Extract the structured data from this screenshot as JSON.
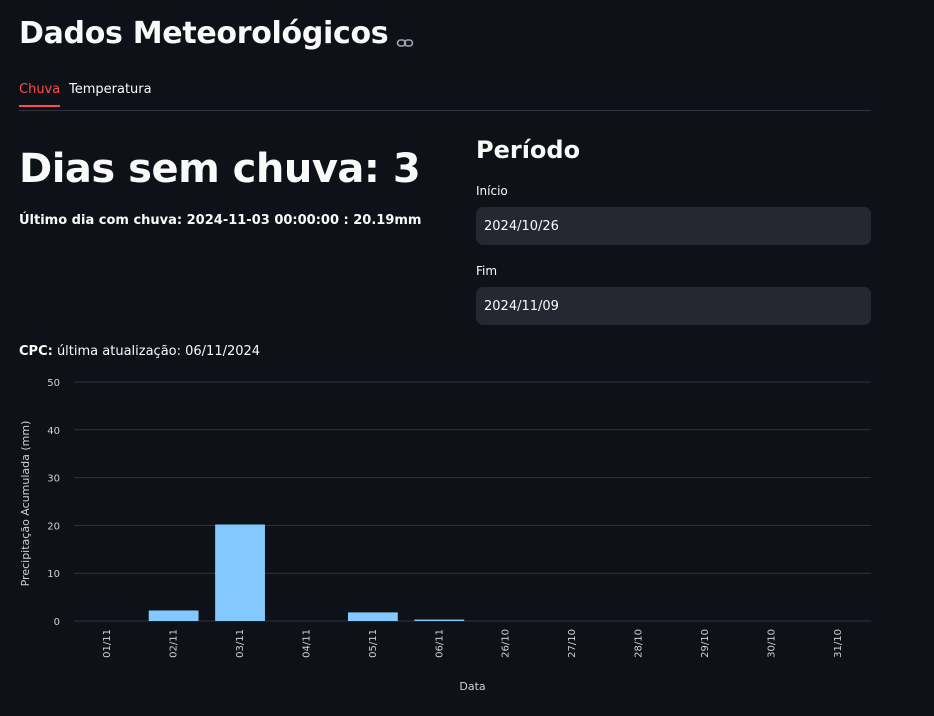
{
  "header": {
    "title": "Dados Meteorológicos",
    "link_icon": "link-icon"
  },
  "tabs": [
    {
      "label": "Chuva",
      "active": true
    },
    {
      "label": "Temperatura",
      "active": false
    }
  ],
  "rain": {
    "days_without_rain": "Dias sem chuva: 3",
    "last_rain": "Último dia com chuva: 2024-11-03 00:00:00 : 20.19mm"
  },
  "period": {
    "title": "Período",
    "start_label": "Início",
    "start_value": "2024/10/26",
    "end_label": "Fim",
    "end_value": "2024/11/09"
  },
  "cpc": {
    "prefix": "CPC:",
    "text": " última atualização: 06/11/2024"
  },
  "colors": {
    "accent": "#ff4b4b",
    "bar": "#83c9ff",
    "grid": "#31333f",
    "background": "#0e1117",
    "input_bg": "#262730"
  },
  "chart_data": {
    "type": "bar",
    "categories": [
      "01/11",
      "02/11",
      "03/11",
      "04/11",
      "05/11",
      "06/11",
      "26/10",
      "27/10",
      "28/10",
      "29/10",
      "30/10",
      "31/10"
    ],
    "values": [
      0,
      2.2,
      20.19,
      0,
      1.8,
      0.3,
      0,
      0,
      0,
      0,
      0,
      0
    ],
    "xlabel": "Data",
    "ylabel": "Precipitação Acumulada (mm)",
    "ylim": [
      0,
      50
    ],
    "yticks": [
      0,
      10,
      20,
      30,
      40,
      50
    ],
    "grid": true
  }
}
